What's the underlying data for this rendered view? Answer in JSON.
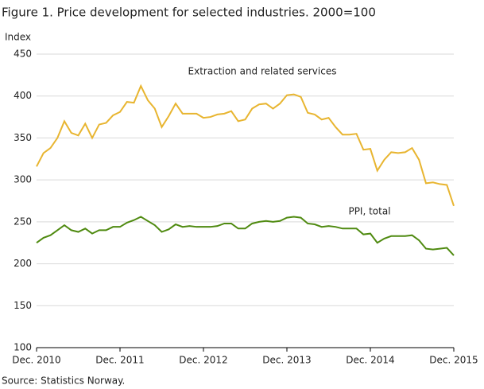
{
  "chart_data": {
    "type": "line",
    "title": "Figure 1. Price development for selected industries. 2000=100",
    "y_label": "Index",
    "source": "Source: Statistics Norway.",
    "categories": [
      "Dec. 2010",
      null,
      null,
      null,
      null,
      null,
      null,
      null,
      null,
      null,
      null,
      null,
      "Dec. 2011",
      null,
      null,
      null,
      null,
      null,
      null,
      null,
      null,
      null,
      null,
      null,
      "Dec. 2012",
      null,
      null,
      null,
      null,
      null,
      null,
      null,
      null,
      null,
      null,
      null,
      "Dec. 2013",
      null,
      null,
      null,
      null,
      null,
      null,
      null,
      null,
      null,
      null,
      null,
      "Dec. 2014",
      null,
      null,
      null,
      null,
      null,
      null,
      null,
      null,
      null,
      null,
      null,
      "Dec. 2015"
    ],
    "series": [
      {
        "name": "Extraction and related services",
        "color": "#e8b530",
        "values": [
          316,
          332,
          338,
          350,
          370,
          356,
          353,
          367,
          350,
          366,
          368,
          377,
          381,
          393,
          392,
          412,
          395,
          385,
          363,
          376,
          391,
          379,
          379,
          379,
          374,
          375,
          378,
          379,
          382,
          370,
          372,
          385,
          390,
          391,
          385,
          391,
          401,
          402,
          399,
          380,
          378,
          372,
          374,
          363,
          354,
          354,
          355,
          336,
          337,
          311,
          324,
          333,
          332,
          333,
          338,
          324,
          296,
          297,
          295,
          294,
          269
        ]
      },
      {
        "name": "PPI, total",
        "color": "#4f8a10",
        "values": [
          225,
          231,
          234,
          240,
          246,
          240,
          238,
          242,
          236,
          240,
          240,
          244,
          244,
          249,
          252,
          256,
          251,
          246,
          238,
          241,
          247,
          244,
          245,
          244,
          244,
          244,
          245,
          248,
          248,
          242,
          242,
          248,
          250,
          251,
          250,
          251,
          255,
          256,
          255,
          248,
          247,
          244,
          245,
          244,
          242,
          242,
          242,
          235,
          236,
          225,
          230,
          233,
          233,
          233,
          234,
          228,
          218,
          217,
          218,
          219,
          210
        ]
      }
    ],
    "ylim": [
      100,
      450
    ],
    "yticks": [
      100,
      150,
      200,
      250,
      300,
      350,
      400,
      450
    ],
    "grid": true
  }
}
